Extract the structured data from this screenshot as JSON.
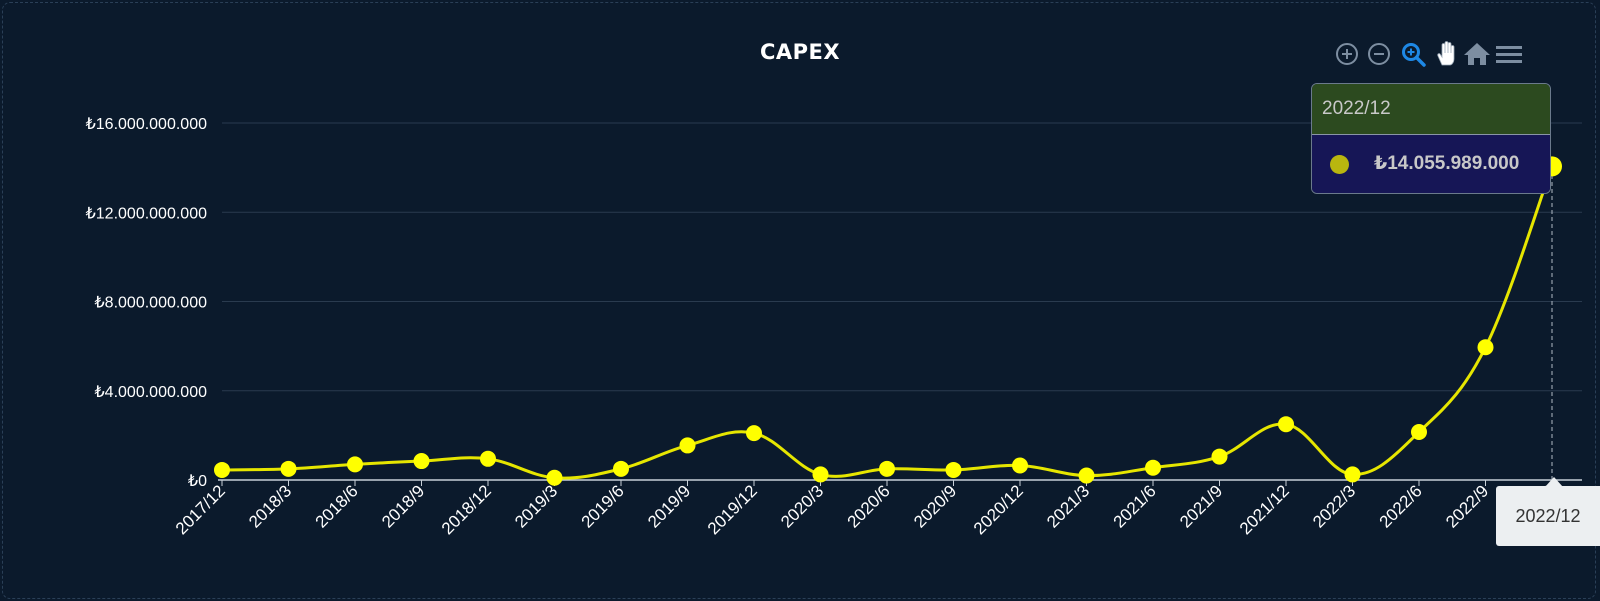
{
  "chart_data": {
    "type": "line",
    "title": "CAPEX",
    "categories": [
      "2017/12",
      "2018/3",
      "2018/6",
      "2018/9",
      "2018/12",
      "2019/3",
      "2019/6",
      "2019/9",
      "2019/12",
      "2020/3",
      "2020/6",
      "2020/9",
      "2020/12",
      "2021/3",
      "2021/6",
      "2021/9",
      "2021/12",
      "2022/3",
      "2022/6",
      "2022/9",
      "2022/12"
    ],
    "series": [
      {
        "values": [
          450000000,
          500000000,
          700000000,
          850000000,
          950000000,
          100000000,
          500000000,
          1550000000,
          2100000000,
          250000000,
          500000000,
          450000000,
          650000000,
          200000000,
          550000000,
          1050000000,
          2500000000,
          250000000,
          2150000000,
          5950000000,
          14055989000
        ]
      }
    ],
    "y_ticks": [
      "₺0",
      "₺4.000.000.000",
      "₺8.000.000.000",
      "₺12.000.000.000",
      "₺16.000.000.000"
    ],
    "ylim": [
      0,
      16000000000
    ],
    "grid": true,
    "line_color": "#e6e600",
    "marker_color": "#ffff00"
  },
  "tooltip": {
    "category": "2022/12",
    "value": "₺14.055.989.000",
    "header_color": "#2c4a1f",
    "body_color": "#161656"
  },
  "x_crosshair_label": "2022/12",
  "toolbar": {
    "tools": [
      "zoom-in-icon",
      "zoom-out-icon",
      "selection-zoom-icon",
      "pan-icon",
      "reset-home-icon",
      "menu-icon"
    ],
    "active_tool": "selection-zoom-icon",
    "accent_color": "#1e88e5"
  }
}
